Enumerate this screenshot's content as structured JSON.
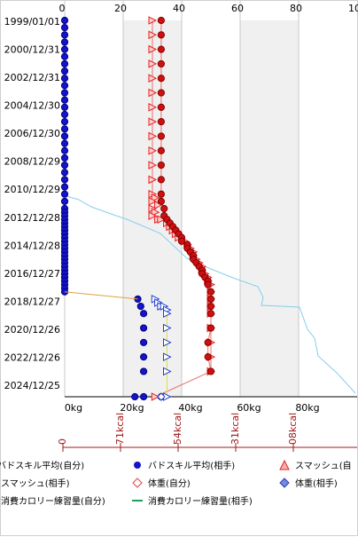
{
  "chart_data": {
    "type": "line",
    "title": "",
    "x_unit": "kg",
    "x_tick_labels_top": [
      "0",
      "20",
      "40",
      "60",
      "80",
      "10"
    ],
    "x_tick_labels_bottom": [
      "0kg",
      "20kg",
      "40kg",
      "60kg",
      "80kg"
    ],
    "calorie_tick_labels": [
      "0",
      "71kcal",
      "54kcal",
      "31kcal",
      "08kcal"
    ],
    "y_tick_labels": [
      "1999/01/01",
      "2000/12/31",
      "2002/12/31",
      "2004/12/30",
      "2006/12/30",
      "2008/12/29",
      "2010/12/29",
      "2012/12/28",
      "2014/12/28",
      "2016/12/27",
      "2018/12/27",
      "2020/12/26",
      "2022/12/26",
      "2024/12/25"
    ],
    "xlim": [
      0,
      100
    ],
    "grid": true,
    "legend_position": "bottom",
    "colors": {
      "badminton_self": "#1414c8",
      "smash_self": "#e82020",
      "weight_self": "#e84040",
      "weight_opponent": "#3030c8",
      "calorie_self": "#e0a040",
      "calorie_opponent": "#20a060",
      "trend": "#87ceeb",
      "calorie_axis": "#a01818",
      "grid_band": "#f0f0f0",
      "grid_line": "#c8c8c8"
    },
    "series": [
      {
        "name": "バドスキル平均(自分)",
        "marker": "circle",
        "points": [
          [
            0,
            "1999/01"
          ],
          [
            0,
            "1999/07"
          ],
          [
            0,
            "2000/01"
          ],
          [
            0,
            "2000/07"
          ],
          [
            0,
            "2001/01"
          ],
          [
            0,
            "2001/07"
          ],
          [
            0,
            "2002/01"
          ],
          [
            0,
            "2002/07"
          ],
          [
            0,
            "2003/01"
          ],
          [
            0,
            "2003/07"
          ],
          [
            0,
            "2004/01"
          ],
          [
            0,
            "2004/07"
          ],
          [
            0,
            "2005/01"
          ],
          [
            0,
            "2005/07"
          ],
          [
            0,
            "2006/01"
          ],
          [
            0,
            "2006/07"
          ],
          [
            0,
            "2007/01"
          ],
          [
            0,
            "2007/07"
          ],
          [
            0,
            "2008/01"
          ],
          [
            0,
            "2008/07"
          ],
          [
            0,
            "2009/01"
          ],
          [
            0,
            "2009/07"
          ],
          [
            0,
            "2010/01"
          ],
          [
            0,
            "2010/07"
          ],
          [
            0,
            "2011/01"
          ],
          [
            0,
            "2011/07"
          ],
          [
            0,
            "2012/01"
          ],
          [
            0,
            "2012/04"
          ],
          [
            0,
            "2012/07"
          ],
          [
            0,
            "2012/10"
          ],
          [
            0,
            "2013/01"
          ],
          [
            0,
            "2013/04"
          ],
          [
            0,
            "2013/07"
          ],
          [
            0,
            "2013/10"
          ],
          [
            0,
            "2014/01"
          ],
          [
            0,
            "2014/04"
          ],
          [
            0,
            "2014/07"
          ],
          [
            0,
            "2014/10"
          ],
          [
            0,
            "2015/01"
          ],
          [
            0,
            "2015/04"
          ],
          [
            0,
            "2015/07"
          ],
          [
            0,
            "2015/10"
          ],
          [
            0,
            "2016/01"
          ],
          [
            0,
            "2016/04"
          ],
          [
            0,
            "2016/07"
          ],
          [
            0,
            "2016/10"
          ],
          [
            0,
            "2017/01"
          ],
          [
            0,
            "2017/04"
          ],
          [
            0,
            "2017/07"
          ],
          [
            0,
            "2017/10"
          ]
        ]
      },
      {
        "name": "バドスキル平均(相手)",
        "marker": "circle",
        "points": [
          [
            25,
            "2018/04"
          ],
          [
            26,
            "2018/10"
          ],
          [
            27,
            "2019/04"
          ],
          [
            27,
            "2020/04"
          ],
          [
            27,
            "2021/04"
          ],
          [
            27,
            "2022/04"
          ],
          [
            27,
            "2023/04"
          ],
          [
            24,
            "2025/01"
          ],
          [
            27,
            "2025/01"
          ],
          [
            33,
            "2025/01"
          ]
        ]
      },
      {
        "name": "スマッシュ(自分)",
        "marker": "triangle",
        "points": [
          [
            30,
            "1999/01"
          ],
          [
            30,
            "2000/01"
          ],
          [
            30,
            "2001/01"
          ],
          [
            30,
            "2002/01"
          ],
          [
            30,
            "2003/01"
          ],
          [
            30,
            "2004/01"
          ],
          [
            30,
            "2005/01"
          ],
          [
            30,
            "2006/01"
          ],
          [
            30,
            "2007/01"
          ],
          [
            30,
            "2008/01"
          ],
          [
            30,
            "2009/01"
          ],
          [
            30,
            "2010/01"
          ],
          [
            30,
            "2011/01"
          ],
          [
            31,
            "2011/04"
          ],
          [
            30,
            "2011/07"
          ],
          [
            32,
            "2011/10"
          ],
          [
            30,
            "2012/01"
          ],
          [
            31,
            "2012/04"
          ],
          [
            30,
            "2012/07"
          ],
          [
            32,
            "2012/10"
          ],
          [
            33,
            "2012/10"
          ],
          [
            35,
            "2013/01"
          ],
          [
            36,
            "2013/04"
          ],
          [
            37,
            "2013/07"
          ],
          [
            38,
            "2013/10"
          ],
          [
            39,
            "2014/01"
          ],
          [
            41,
            "2014/04"
          ],
          [
            42,
            "2014/07"
          ],
          [
            43,
            "2014/10"
          ],
          [
            44,
            "2015/01"
          ],
          [
            44,
            "2015/04"
          ],
          [
            45,
            "2015/07"
          ],
          [
            46,
            "2015/10"
          ],
          [
            47,
            "2016/01"
          ],
          [
            47,
            "2016/04"
          ],
          [
            48,
            "2016/07"
          ],
          [
            49,
            "2016/10"
          ],
          [
            49,
            "2017/01"
          ],
          [
            50,
            "2017/04"
          ],
          [
            50,
            "2017/10"
          ],
          [
            50,
            "2018/04"
          ],
          [
            50,
            "2018/10"
          ],
          [
            50,
            "2019/04"
          ],
          [
            50,
            "2020/04"
          ],
          [
            50,
            "2021/04"
          ],
          [
            50,
            "2022/04"
          ],
          [
            50,
            "2023/04"
          ],
          [
            31,
            "2025/01"
          ]
        ]
      },
      {
        "name": "スマッシュ(相手)",
        "marker": "triangle",
        "points": [
          [
            31,
            "2018/04"
          ],
          [
            32,
            "2018/07"
          ],
          [
            33,
            "2018/10"
          ],
          [
            34,
            "2018/10"
          ],
          [
            35,
            "2019/01"
          ],
          [
            35,
            "2019/04"
          ],
          [
            35,
            "2020/04"
          ],
          [
            35,
            "2021/04"
          ],
          [
            35,
            "2022/04"
          ],
          [
            35,
            "2023/04"
          ],
          [
            35,
            "2025/01"
          ]
        ]
      },
      {
        "name": "体重(自分)",
        "marker": "circle",
        "points": [
          [
            33,
            "1999/01"
          ],
          [
            33,
            "2000/01"
          ],
          [
            33,
            "2001/01"
          ],
          [
            33,
            "2002/01"
          ],
          [
            33,
            "2003/01"
          ],
          [
            33,
            "2004/01"
          ],
          [
            33,
            "2005/01"
          ],
          [
            33,
            "2006/01"
          ],
          [
            33,
            "2007/01"
          ],
          [
            33,
            "2008/01"
          ],
          [
            33,
            "2009/01"
          ],
          [
            33,
            "2010/01"
          ],
          [
            33,
            "2011/01"
          ],
          [
            33,
            "2011/07"
          ],
          [
            34,
            "2012/01"
          ],
          [
            34,
            "2012/07"
          ],
          [
            35,
            "2012/10"
          ],
          [
            36,
            "2013/01"
          ],
          [
            37,
            "2013/04"
          ],
          [
            38,
            "2013/07"
          ],
          [
            39,
            "2013/10"
          ],
          [
            40,
            "2014/01"
          ],
          [
            40,
            "2014/04"
          ],
          [
            42,
            "2014/07"
          ],
          [
            42,
            "2014/10"
          ],
          [
            43,
            "2015/01"
          ],
          [
            44,
            "2015/04"
          ],
          [
            44,
            "2015/07"
          ],
          [
            45,
            "2015/10"
          ],
          [
            46,
            "2016/01"
          ],
          [
            47,
            "2016/04"
          ],
          [
            47,
            "2016/07"
          ],
          [
            48,
            "2016/10"
          ],
          [
            49,
            "2017/01"
          ],
          [
            49,
            "2017/04"
          ],
          [
            50,
            "2017/10"
          ],
          [
            50,
            "2018/04"
          ],
          [
            50,
            "2018/10"
          ],
          [
            50,
            "2019/04"
          ],
          [
            50,
            "2020/04"
          ],
          [
            49,
            "2021/04"
          ],
          [
            49,
            "2022/04"
          ],
          [
            50,
            "2023/04"
          ]
        ]
      },
      {
        "name": "体重(相手)",
        "marker": "diamond",
        "points": [
          [
            33,
            "2025/01"
          ]
        ]
      },
      {
        "name": "消費カロリー練習量(自分)",
        "marker": "line",
        "points": [
          [
            0,
            "2017/10"
          ],
          [
            25,
            "2018/04"
          ]
        ]
      },
      {
        "name": "消費カロリー練習量(相手)",
        "marker": "line",
        "points": []
      }
    ]
  },
  "legend": [
    {
      "label": "バドスキル平均(自分)",
      "icon": "circle-icon"
    },
    {
      "label": "バドスキル平均(相手)",
      "icon": "circle-icon"
    },
    {
      "label": "スマッシュ(自",
      "icon": "triangle-icon"
    },
    {
      "label": "スマッシュ(相手)",
      "icon": "triangle-icon"
    },
    {
      "label": "体重(自分)",
      "icon": "diamond-icon"
    },
    {
      "label": "体重(相手)",
      "icon": "diamond-icon"
    },
    {
      "label": "消費カロリー練習量(自分)",
      "icon": "line-icon"
    },
    {
      "label": "消費カロリー練習量(相手)",
      "icon": "line-icon"
    }
  ]
}
